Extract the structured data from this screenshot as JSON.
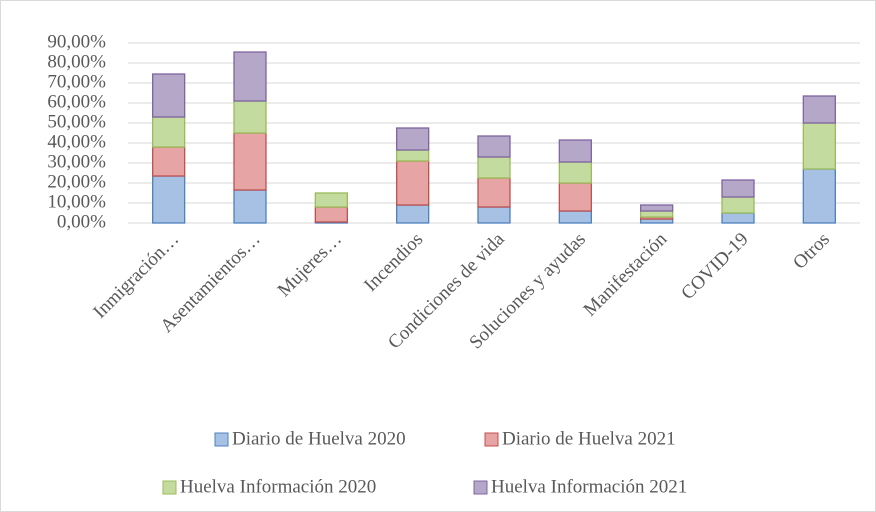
{
  "chart_data": {
    "type": "bar",
    "stacked": true,
    "categories": [
      "Inmigración…",
      "Asentamientos…",
      "Mujeres…",
      "Incendios",
      "Condiciones de vida",
      "Soluciones y ayudas",
      "Manifestación",
      "COVID-19",
      "Otros"
    ],
    "series": [
      {
        "name": "Diario de Huelva 2020",
        "color": "#a6c1e3",
        "edge": "#4f81bd",
        "values": [
          23.5,
          16.5,
          0.5,
          9,
          8,
          6,
          2,
          5,
          27
        ]
      },
      {
        "name": "Diario de Huelva 2021",
        "color": "#e6a5a4",
        "edge": "#c0504d",
        "values": [
          14.5,
          28.5,
          7.5,
          22,
          14.5,
          14,
          1,
          0,
          0
        ]
      },
      {
        "name": "Huelva Información 2020",
        "color": "#c4dba0",
        "edge": "#9bbb59",
        "values": [
          15,
          16,
          7,
          5.5,
          10.5,
          10.5,
          3,
          8,
          23
        ]
      },
      {
        "name": "Huelva Información 2021",
        "color": "#b4a7c8",
        "edge": "#8064a2",
        "values": [
          21.5,
          24.5,
          0,
          11,
          10.5,
          11,
          3,
          8.5,
          13.5
        ]
      }
    ],
    "ylim": [
      0,
      90
    ],
    "yticks": [
      {
        "value": 0,
        "label": "0,00%"
      },
      {
        "value": 10,
        "label": "10,00%"
      },
      {
        "value": 20,
        "label": "20,00%"
      },
      {
        "value": 30,
        "label": "30,00%"
      },
      {
        "value": 40,
        "label": "40,00%"
      },
      {
        "value": 50,
        "label": "50,00%"
      },
      {
        "value": 60,
        "label": "60,00%"
      },
      {
        "value": 70,
        "label": "70,00%"
      },
      {
        "value": 80,
        "label": "80,00%"
      },
      {
        "value": 90,
        "label": "90,00%"
      }
    ],
    "grid": true,
    "legend": "bottom"
  }
}
